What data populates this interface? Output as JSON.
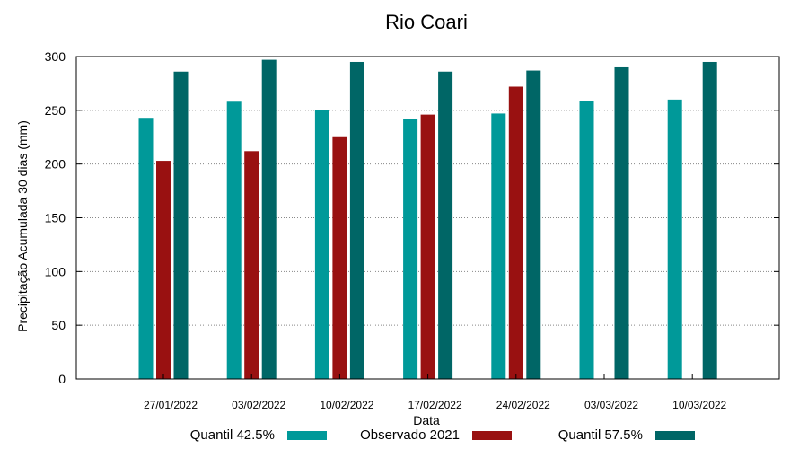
{
  "chart_data": {
    "type": "bar",
    "title": "Rio Coari",
    "xlabel": "Data",
    "ylabel": "Precipitação Acumulada 30 dias (mm)",
    "ylim": [
      0,
      300
    ],
    "yticks": [
      0,
      50,
      100,
      150,
      200,
      250,
      300
    ],
    "grid": true,
    "legend_position": "bottom",
    "categories": [
      "27/01/2022",
      "03/02/2022",
      "10/02/2022",
      "17/02/2022",
      "24/02/2022",
      "03/03/2022",
      "10/03/2022"
    ],
    "series": [
      {
        "name": "Quantil 42.5%",
        "color": "#009999",
        "values": [
          243,
          258,
          250,
          242,
          247,
          259,
          260
        ]
      },
      {
        "name": "Observado 2021",
        "color": "#991111",
        "values": [
          203,
          212,
          225,
          246,
          272,
          null,
          null
        ]
      },
      {
        "name": "Quantil 57.5%",
        "color": "#006666",
        "values": [
          286,
          297,
          295,
          286,
          287,
          290,
          295
        ]
      }
    ]
  }
}
